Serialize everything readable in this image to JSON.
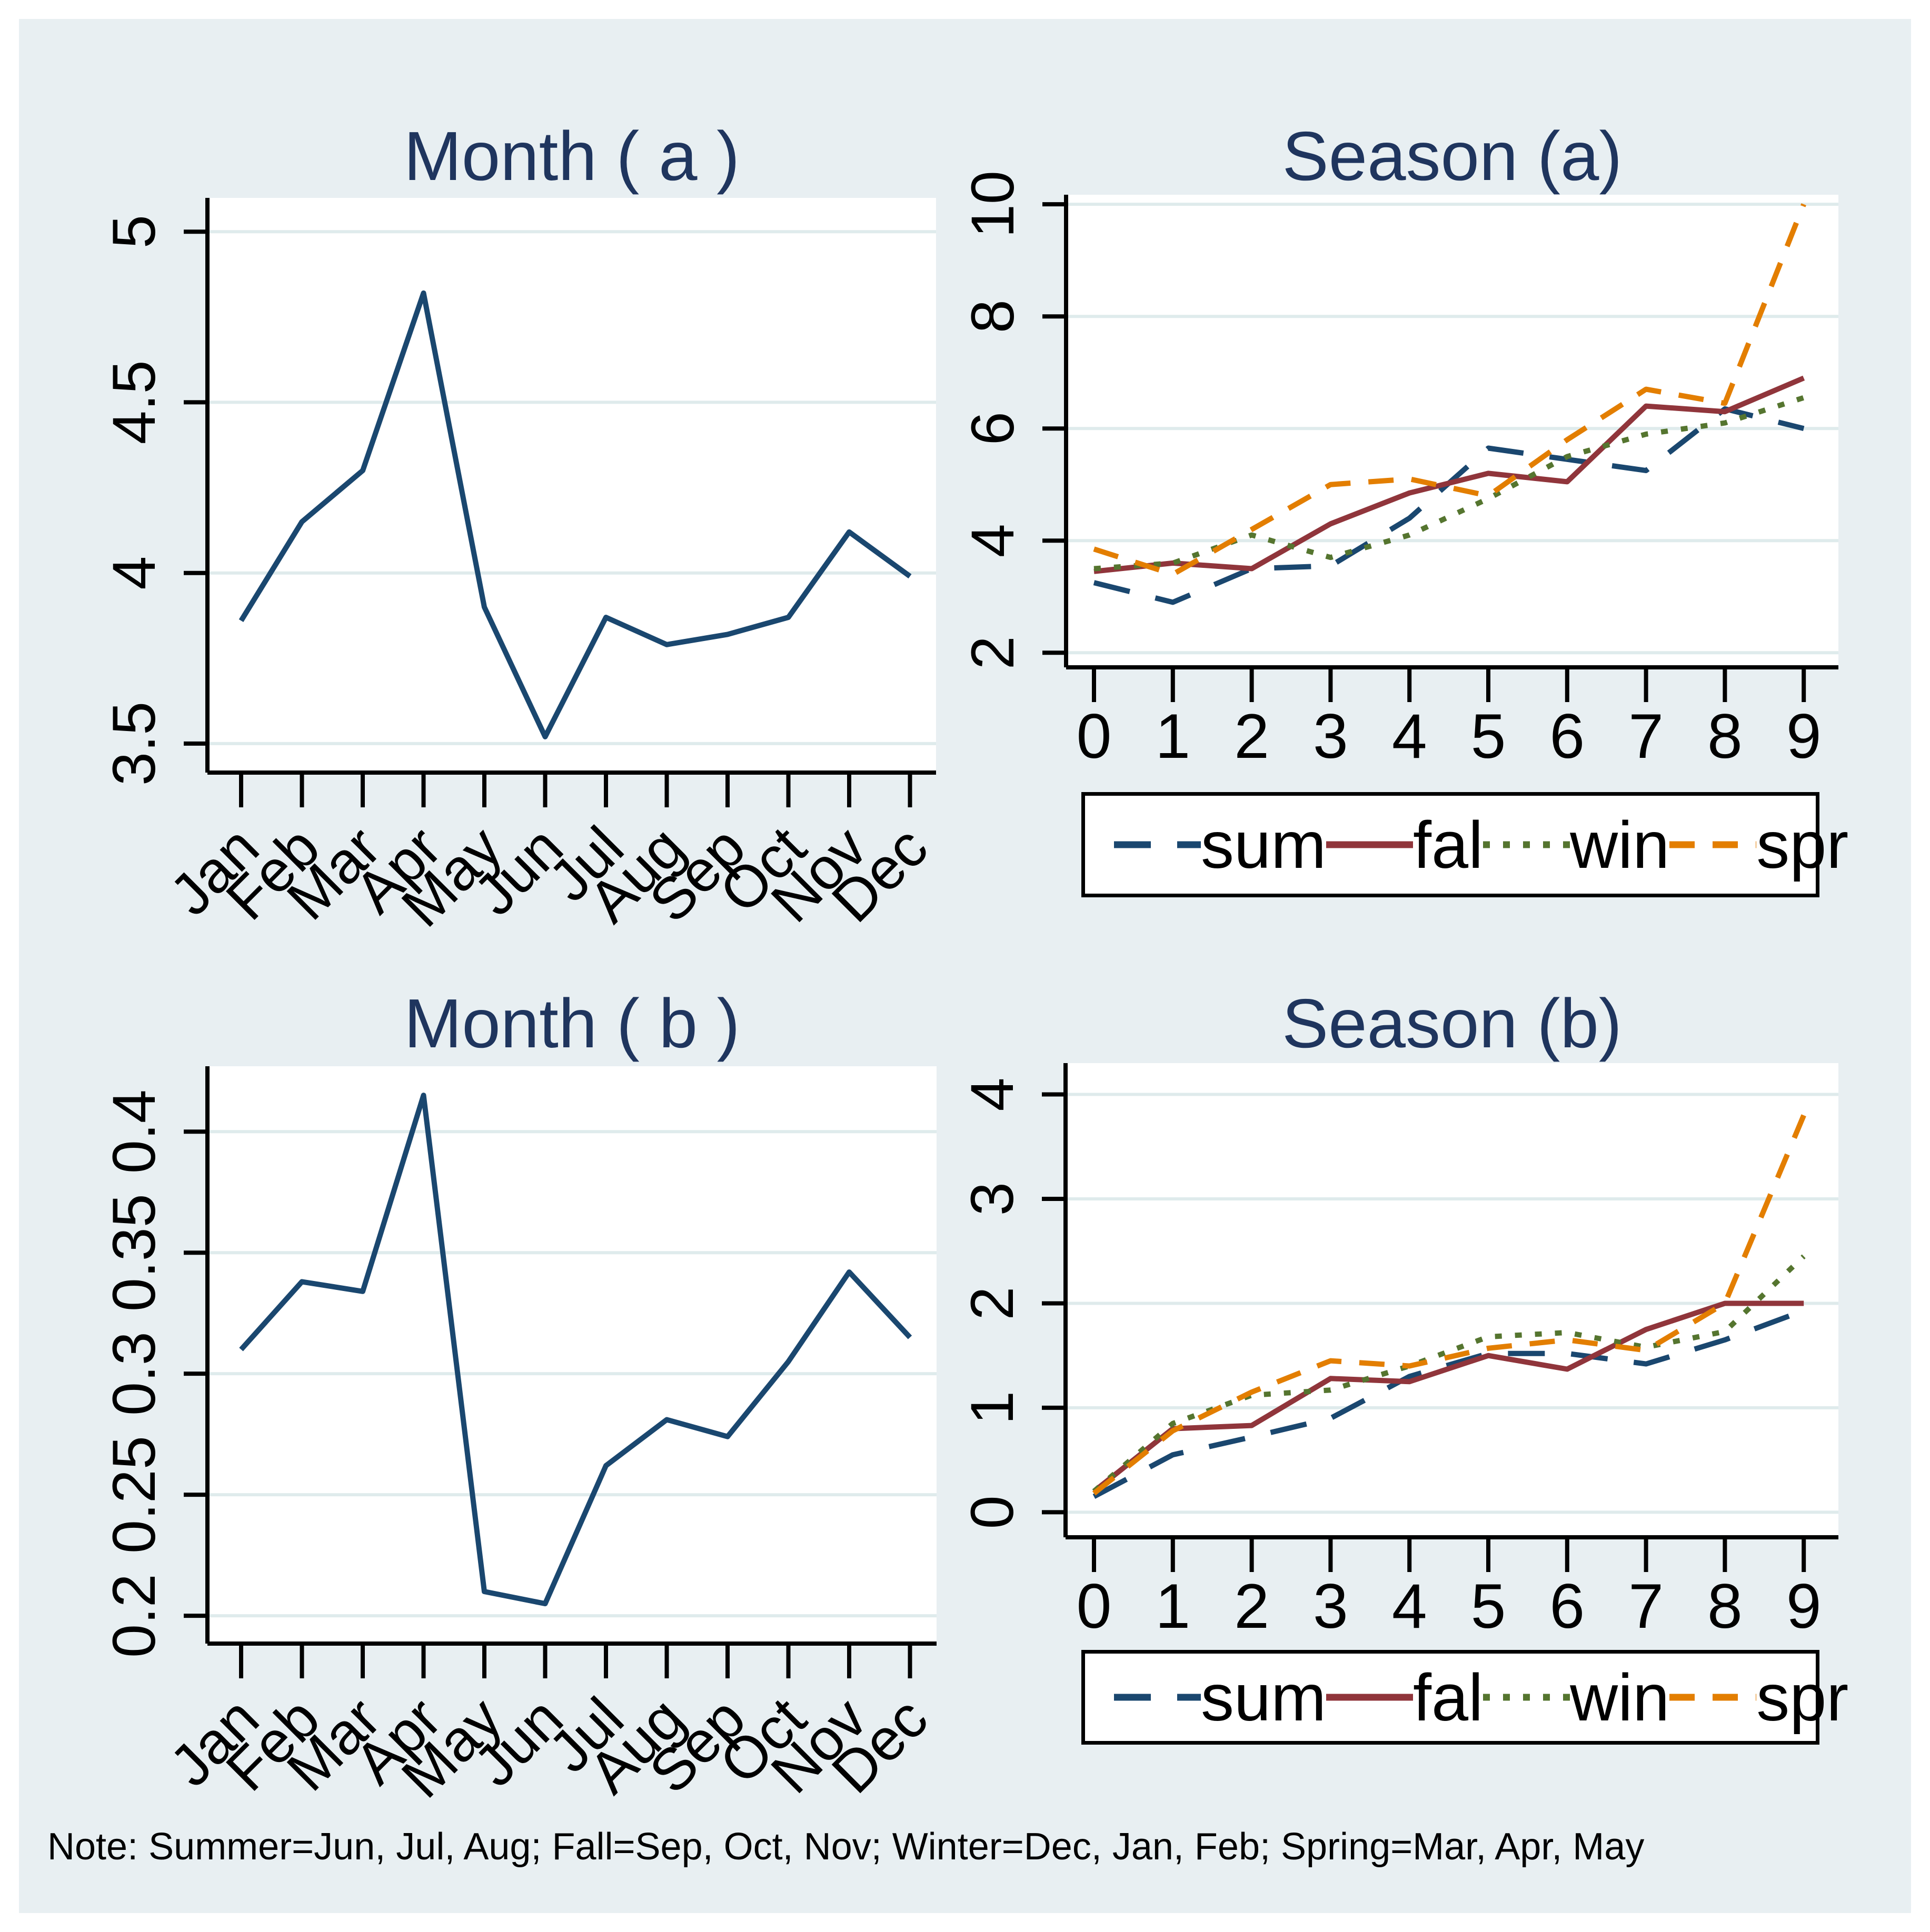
{
  "background_color": "#e8eff2",
  "plot_background": "#ffffff",
  "gridline_color": "#dfebec",
  "axis_color": "#000000",
  "title_color": "#1f355e",
  "note": "Note: Summer=Jun, Jul, Aug; Fall=Sep, Oct, Nov; Winter=Dec, Jan, Feb; Spring=Mar, Apr, May",
  "chart_data": [
    {
      "type": "line",
      "title": "Month ( a )",
      "categories": [
        "Jan",
        "Feb",
        "Mar",
        "Apr",
        "May",
        "Jun",
        "Jul",
        "Aug",
        "Sep",
        "Oct",
        "Nov",
        "Dec"
      ],
      "values": [
        3.86,
        4.15,
        4.3,
        4.82,
        3.9,
        3.52,
        3.87,
        3.79,
        3.82,
        3.87,
        4.12,
        3.99
      ],
      "line_color": "#1a476f",
      "xlabel": "",
      "ylabel": "",
      "yticks": [
        3.5,
        4,
        4.5,
        5
      ],
      "ytick_labels": [
        "3.5",
        "4",
        "4.5",
        "5"
      ],
      "ylim": [
        3.415,
        5.099
      ],
      "x_label_rotation": 45,
      "grid": true,
      "legend_position": "none"
    },
    {
      "type": "line",
      "title": "Season (a)",
      "x": [
        0,
        1,
        2,
        3,
        4,
        5,
        6,
        7,
        8,
        9
      ],
      "series": [
        {
          "name": "sum",
          "color": "#1a476f",
          "dash": "longdash",
          "values": [
            3.25,
            2.9,
            3.5,
            3.55,
            4.4,
            5.65,
            5.45,
            5.25,
            6.35,
            6.0
          ]
        },
        {
          "name": "fal",
          "color": "#90353b",
          "dash": "solid",
          "values": [
            3.45,
            3.6,
            3.5,
            4.3,
            4.85,
            5.2,
            5.05,
            6.4,
            6.3,
            6.9
          ]
        },
        {
          "name": "win",
          "color": "#55752f",
          "dash": "dot",
          "values": [
            3.5,
            3.6,
            4.1,
            3.7,
            4.1,
            4.75,
            5.5,
            5.9,
            6.1,
            6.55
          ]
        },
        {
          "name": "spr",
          "color": "#e37e00",
          "dash": "dash",
          "values": [
            3.85,
            3.4,
            4.2,
            5.0,
            5.1,
            4.8,
            5.8,
            6.7,
            6.45,
            10.0
          ]
        }
      ],
      "xlabel": "",
      "ylabel": "",
      "xtick_labels": [
        "0",
        "1",
        "2",
        "3",
        "4",
        "5",
        "6",
        "7",
        "8",
        "9"
      ],
      "yticks": [
        2,
        4,
        6,
        8,
        10
      ],
      "ytick_labels": [
        "2",
        "4",
        "6",
        "8",
        "10"
      ],
      "ylim": [
        1.74,
        10.17
      ],
      "x_label_rotation": 0,
      "grid": true,
      "legend_position": "bottom"
    },
    {
      "type": "line",
      "title": "Month ( b )",
      "categories": [
        "Jan",
        "Feb",
        "Mar",
        "Apr",
        "May",
        "Jun",
        "Jul",
        "Aug",
        "Sep",
        "Oct",
        "Nov",
        "Dec"
      ],
      "values": [
        0.31,
        0.338,
        0.334,
        0.415,
        0.21,
        0.205,
        0.262,
        0.281,
        0.274,
        0.305,
        0.342,
        0.315
      ],
      "line_color": "#1a476f",
      "xlabel": "",
      "ylabel": "",
      "yticks": [
        0.2,
        0.25,
        0.3,
        0.35,
        0.4
      ],
      "ytick_labels": [
        "0.2",
        "0.25",
        "0.3",
        "0.35",
        "0.4"
      ],
      "ylim": [
        0.1885,
        0.427
      ],
      "x_label_rotation": 45,
      "grid": true,
      "legend_position": "none"
    },
    {
      "type": "line",
      "title": "Season (b)",
      "x": [
        0,
        1,
        2,
        3,
        4,
        5,
        6,
        7,
        8,
        9
      ],
      "series": [
        {
          "name": "sum",
          "color": "#1a476f",
          "dash": "longdash",
          "values": [
            0.15,
            0.55,
            0.72,
            0.9,
            1.3,
            1.52,
            1.52,
            1.42,
            1.65,
            1.93
          ]
        },
        {
          "name": "fal",
          "color": "#90353b",
          "dash": "solid",
          "values": [
            0.2,
            0.8,
            0.83,
            1.28,
            1.25,
            1.5,
            1.37,
            1.75,
            2.0,
            2.0
          ]
        },
        {
          "name": "win",
          "color": "#55752f",
          "dash": "dot",
          "values": [
            0.2,
            0.85,
            1.12,
            1.17,
            1.4,
            1.68,
            1.72,
            1.58,
            1.73,
            2.45
          ]
        },
        {
          "name": "spr",
          "color": "#e37e00",
          "dash": "dash",
          "values": [
            0.18,
            0.78,
            1.15,
            1.45,
            1.4,
            1.57,
            1.65,
            1.55,
            2.0,
            3.8
          ]
        }
      ],
      "xlabel": "",
      "ylabel": "",
      "xtick_labels": [
        "0",
        "1",
        "2",
        "3",
        "4",
        "5",
        "6",
        "7",
        "8",
        "9"
      ],
      "yticks": [
        0,
        1,
        2,
        3,
        4
      ],
      "ytick_labels": [
        "0",
        "1",
        "2",
        "3",
        "4"
      ],
      "ylim": [
        -0.24,
        4.3
      ],
      "x_label_rotation": 0,
      "grid": true,
      "legend_position": "bottom"
    }
  ]
}
